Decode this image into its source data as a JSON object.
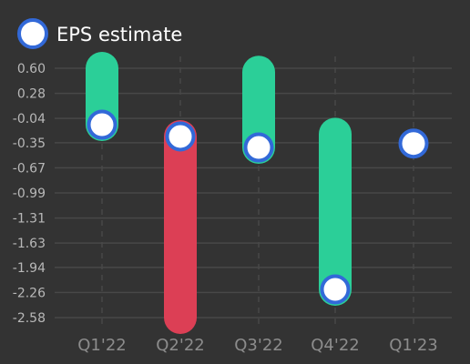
{
  "chart_data": {
    "type": "bar",
    "categories": [
      "Q1'22",
      "Q2'22",
      "Q3'22",
      "Q4'22",
      "Q1'23"
    ],
    "legend": {
      "label": "EPS estimate",
      "position": "top-left"
    },
    "y_ticks": [
      "0.60",
      "0.28",
      "-0.04",
      "-0.35",
      "-0.67",
      "-0.99",
      "-1.31",
      "-1.63",
      "-1.94",
      "-2.26",
      "-2.58"
    ],
    "ylim": [
      -2.58,
      0.6
    ],
    "grid": {
      "horizontal": true,
      "vertical": "dashed"
    },
    "series": [
      {
        "name": "EPS estimate",
        "values": [
          -0.12,
          -0.27,
          -0.41,
          -2.22,
          -0.36
        ]
      }
    ],
    "actuals": [
      0.6,
      -2.58,
      0.55,
      -0.24,
      null
    ],
    "colors": {
      "background": "#333333",
      "grid": "#484848",
      "beat": "#2bcf98",
      "miss": "#dc3f55",
      "marker_fill": "#ffffff",
      "marker_stroke": "#3269d8"
    }
  }
}
